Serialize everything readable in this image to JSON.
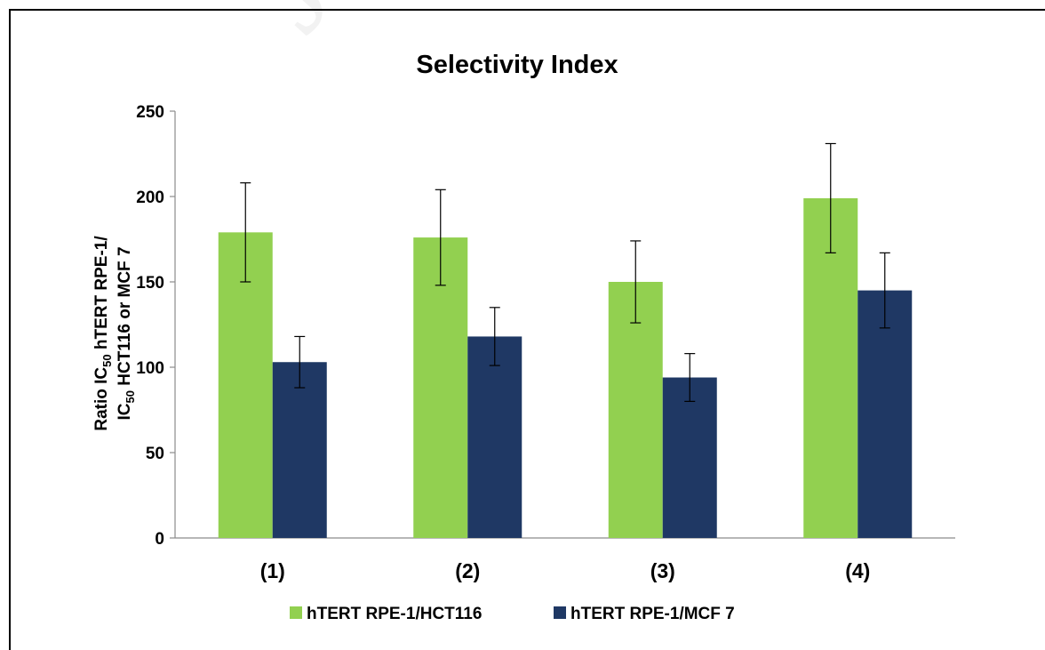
{
  "watermark": "Journal",
  "chart_data": {
    "type": "bar",
    "title": "Selectivity Index",
    "ylabel": {
      "line1": [
        "Ratio IC",
        "50",
        " hTERT RPE-1/"
      ],
      "line2": [
        "IC",
        "50",
        " HCT116 or MCF 7"
      ]
    },
    "xlabel": "",
    "categories": [
      "(1)",
      "(2)",
      "(3)",
      "(4)"
    ],
    "ylim": [
      0,
      250
    ],
    "yticks": [
      0,
      50,
      100,
      150,
      200,
      250
    ],
    "grid": false,
    "legend_position": "bottom",
    "series": [
      {
        "name": "hTERT RPE-1/HCT116",
        "color": "#92D050",
        "values": [
          179,
          176,
          150,
          199
        ],
        "error": [
          29,
          28,
          24,
          32
        ]
      },
      {
        "name": "hTERT RPE-1/MCF 7",
        "color": "#1F3864",
        "values": [
          103,
          118,
          94,
          145
        ],
        "error": [
          15,
          17,
          14,
          22
        ]
      }
    ]
  }
}
